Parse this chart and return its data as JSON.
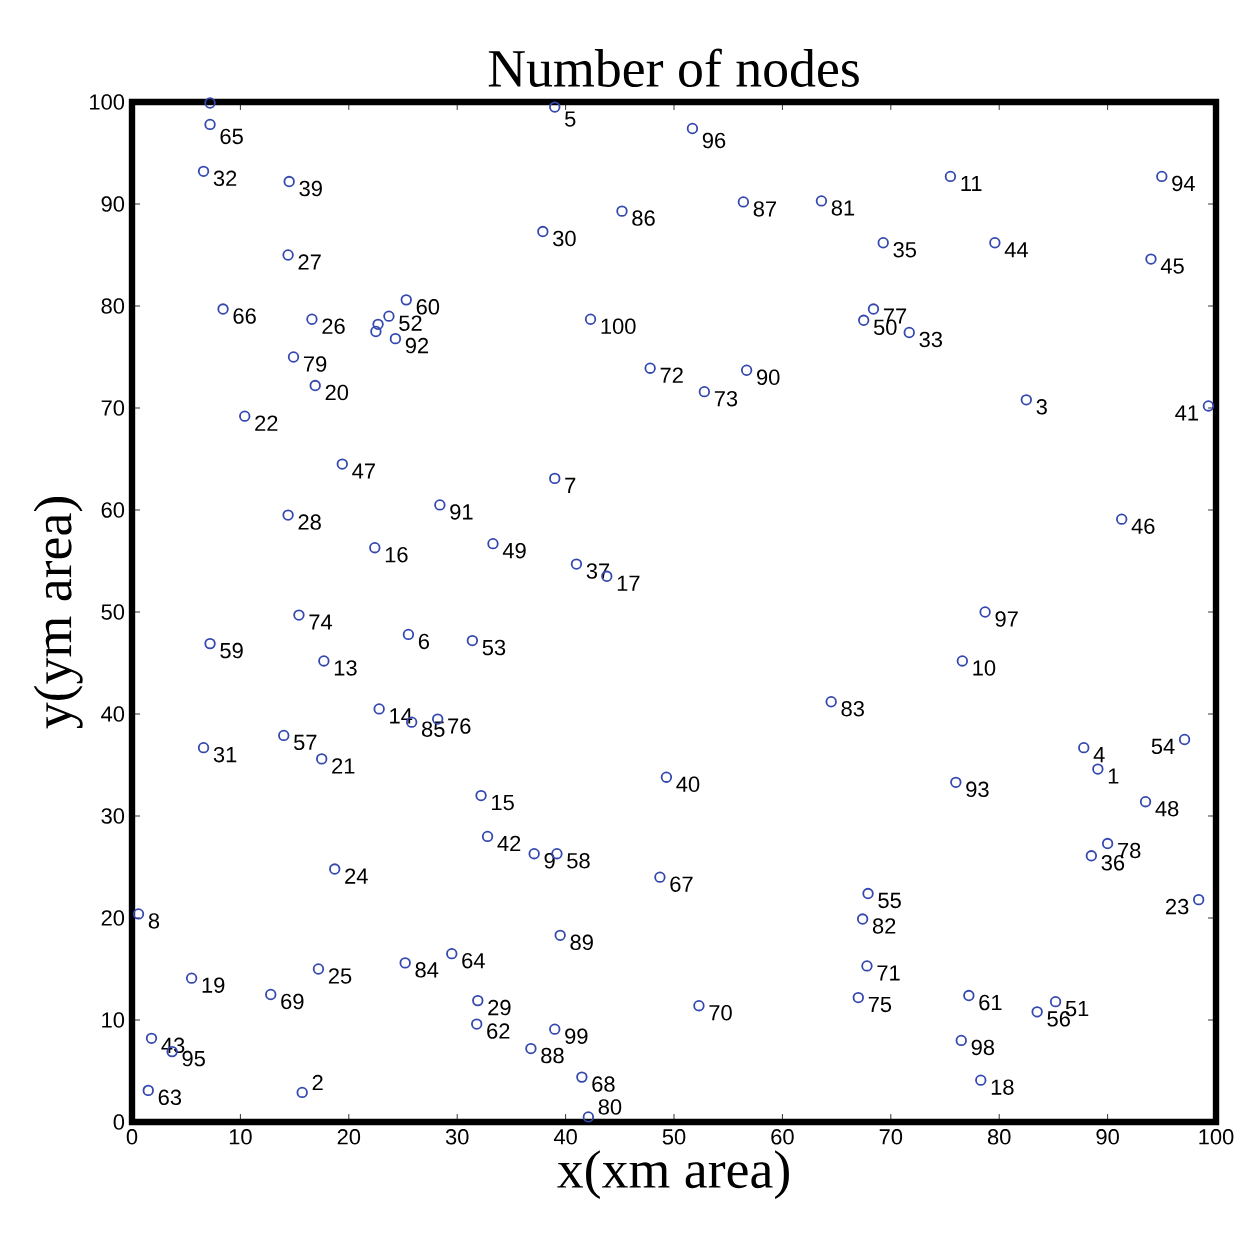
{
  "chart_data": {
    "type": "scatter",
    "title": "Number of nodes",
    "xlabel": "x(xm area)",
    "ylabel": "y(ym area)",
    "xlim": [
      0,
      100
    ],
    "ylim": [
      0,
      100
    ],
    "xticks": [
      0,
      10,
      20,
      30,
      40,
      50,
      60,
      70,
      80,
      90,
      100
    ],
    "yticks": [
      0,
      10,
      20,
      30,
      40,
      50,
      60,
      70,
      80,
      90,
      100
    ],
    "marker": "circle",
    "series": [
      {
        "color": "#3448b0",
        "x": [
          89.1,
          15.7,
          82.5,
          87.8,
          39.0,
          25.5,
          39.0,
          0.6,
          37.1,
          76.6,
          75.5,
          7.2,
          17.7,
          22.8,
          32.2,
          22.4,
          43.8,
          78.3,
          5.5,
          16.9,
          17.5,
          10.4,
          98.4,
          18.7,
          17.2,
          16.6,
          14.4,
          14.4,
          31.9,
          37.9,
          6.6,
          6.6,
          71.7,
          22.7,
          69.3,
          88.5,
          41.0,
          22.5,
          14.5,
          49.3,
          99.3,
          32.8,
          1.8,
          79.6,
          94.0,
          91.3,
          19.4,
          93.5,
          33.3,
          67.5,
          85.2,
          23.7,
          31.4,
          97.1,
          67.9,
          83.5,
          14.0,
          39.2,
          7.2,
          25.3,
          77.2,
          31.8,
          1.5,
          29.5,
          7.2,
          8.4,
          48.7,
          41.5,
          12.8,
          52.3,
          67.8,
          47.8,
          52.8,
          15.4,
          67.0,
          28.2,
          68.4,
          90.0,
          14.9,
          42.1,
          63.6,
          67.4,
          64.5,
          25.2,
          25.8,
          45.2,
          56.4,
          36.8,
          39.5,
          56.7,
          28.4,
          24.3,
          76.0,
          95.0,
          3.7,
          51.7,
          78.7,
          76.5,
          39.0,
          42.3
        ],
        "values": [
          34.6,
          2.9,
          70.8,
          36.7,
          99.5,
          47.8,
          63.1,
          20.4,
          26.3,
          45.2,
          92.7,
          99.9,
          45.2,
          40.5,
          32.0,
          56.3,
          53.5,
          4.1,
          14.1,
          72.2,
          35.6,
          69.2,
          21.8,
          24.8,
          15.0,
          78.7,
          85.0,
          59.5,
          11.9,
          87.3,
          36.7,
          93.2,
          77.4,
          78.2,
          86.2,
          26.1,
          54.7,
          77.5,
          92.2,
          33.8,
          70.2,
          28.0,
          8.2,
          86.2,
          84.6,
          59.1,
          64.5,
          31.4,
          56.7,
          78.6,
          11.8,
          79.0,
          47.2,
          37.5,
          22.4,
          10.8,
          37.9,
          26.3,
          46.9,
          80.6,
          12.4,
          9.6,
          3.1,
          16.5,
          97.8,
          79.7,
          24.0,
          4.4,
          12.5,
          11.4,
          15.3,
          73.9,
          71.6,
          49.7,
          12.2,
          39.5,
          79.7,
          27.3,
          75.0,
          0.5,
          90.3,
          19.9,
          41.2,
          15.6,
          39.2,
          89.3,
          90.2,
          7.2,
          18.3,
          73.7,
          60.5,
          76.8,
          33.3,
          92.7,
          6.9,
          97.4,
          50.0,
          8.0,
          9.1,
          78.7
        ]
      }
    ],
    "annotations": [
      {
        "text": "1",
        "x": 89.1,
        "y": 34.6
      },
      {
        "text": "2",
        "x": 15.7,
        "y": 2.9
      },
      {
        "text": "3",
        "x": 82.5,
        "y": 70.8
      },
      {
        "text": "4",
        "x": 87.8,
        "y": 36.7
      },
      {
        "text": "5",
        "x": 39.0,
        "y": 99.5
      },
      {
        "text": "6",
        "x": 25.5,
        "y": 47.8
      },
      {
        "text": "7",
        "x": 39.0,
        "y": 63.1
      },
      {
        "text": "8",
        "x": 0.6,
        "y": 20.4
      },
      {
        "text": "9",
        "x": 37.1,
        "y": 26.3
      },
      {
        "text": "10",
        "x": 76.6,
        "y": 45.2
      },
      {
        "text": "11",
        "x": 75.5,
        "y": 92.7
      },
      {
        "text": "13",
        "x": 17.7,
        "y": 45.2
      },
      {
        "text": "14",
        "x": 22.8,
        "y": 40.5
      },
      {
        "text": "15",
        "x": 32.2,
        "y": 32.0
      },
      {
        "text": "16",
        "x": 22.4,
        "y": 56.3
      },
      {
        "text": "17",
        "x": 43.8,
        "y": 53.5
      },
      {
        "text": "18",
        "x": 78.3,
        "y": 4.1
      },
      {
        "text": "19",
        "x": 5.5,
        "y": 14.1
      },
      {
        "text": "20",
        "x": 16.9,
        "y": 72.2
      },
      {
        "text": "21",
        "x": 17.5,
        "y": 35.6
      },
      {
        "text": "22",
        "x": 10.4,
        "y": 69.2
      },
      {
        "text": "23",
        "x": 98.4,
        "y": 21.8
      },
      {
        "text": "24",
        "x": 18.7,
        "y": 24.8
      },
      {
        "text": "25",
        "x": 17.2,
        "y": 15.0
      },
      {
        "text": "26",
        "x": 16.6,
        "y": 78.7
      },
      {
        "text": "27",
        "x": 14.4,
        "y": 85.0
      },
      {
        "text": "28",
        "x": 14.4,
        "y": 59.5
      },
      {
        "text": "29",
        "x": 31.9,
        "y": 11.9
      },
      {
        "text": "30",
        "x": 37.9,
        "y": 87.3
      },
      {
        "text": "31",
        "x": 6.6,
        "y": 36.7
      },
      {
        "text": "32",
        "x": 6.6,
        "y": 93.2
      },
      {
        "text": "33",
        "x": 71.7,
        "y": 77.4
      },
      {
        "text": "35",
        "x": 69.3,
        "y": 86.2
      },
      {
        "text": "36",
        "x": 88.5,
        "y": 26.1
      },
      {
        "text": "37",
        "x": 41.0,
        "y": 54.7
      },
      {
        "text": "39",
        "x": 14.5,
        "y": 92.2
      },
      {
        "text": "40",
        "x": 49.3,
        "y": 33.8
      },
      {
        "text": "41",
        "x": 99.3,
        "y": 70.2
      },
      {
        "text": "42",
        "x": 32.8,
        "y": 28.0
      },
      {
        "text": "43",
        "x": 1.8,
        "y": 8.2
      },
      {
        "text": "44",
        "x": 79.6,
        "y": 86.2
      },
      {
        "text": "45",
        "x": 94.0,
        "y": 84.6
      },
      {
        "text": "46",
        "x": 91.3,
        "y": 59.1
      },
      {
        "text": "47",
        "x": 19.4,
        "y": 64.5
      },
      {
        "text": "48",
        "x": 93.5,
        "y": 31.4
      },
      {
        "text": "49",
        "x": 33.3,
        "y": 56.7
      },
      {
        "text": "50",
        "x": 67.5,
        "y": 78.6
      },
      {
        "text": "51",
        "x": 85.2,
        "y": 11.8
      },
      {
        "text": "52",
        "x": 23.7,
        "y": 79.0
      },
      {
        "text": "53",
        "x": 31.4,
        "y": 47.2
      },
      {
        "text": "54",
        "x": 97.1,
        "y": 37.5
      },
      {
        "text": "55",
        "x": 67.9,
        "y": 22.4
      },
      {
        "text": "56",
        "x": 83.5,
        "y": 10.8
      },
      {
        "text": "57",
        "x": 14.0,
        "y": 37.9
      },
      {
        "text": "58",
        "x": 39.2,
        "y": 26.3
      },
      {
        "text": "59",
        "x": 7.2,
        "y": 46.9
      },
      {
        "text": "60",
        "x": 25.3,
        "y": 80.6
      },
      {
        "text": "61",
        "x": 77.2,
        "y": 12.4
      },
      {
        "text": "62",
        "x": 31.8,
        "y": 9.6
      },
      {
        "text": "63",
        "x": 1.5,
        "y": 3.1
      },
      {
        "text": "64",
        "x": 29.5,
        "y": 16.5
      },
      {
        "text": "65",
        "x": 7.2,
        "y": 97.8
      },
      {
        "text": "66",
        "x": 8.4,
        "y": 79.7
      },
      {
        "text": "67",
        "x": 48.7,
        "y": 24.0
      },
      {
        "text": "68",
        "x": 41.5,
        "y": 4.4
      },
      {
        "text": "69",
        "x": 12.8,
        "y": 12.5
      },
      {
        "text": "70",
        "x": 52.3,
        "y": 11.4
      },
      {
        "text": "71",
        "x": 67.8,
        "y": 15.3
      },
      {
        "text": "72",
        "x": 47.8,
        "y": 73.9
      },
      {
        "text": "73",
        "x": 52.8,
        "y": 71.6
      },
      {
        "text": "74",
        "x": 15.4,
        "y": 49.7
      },
      {
        "text": "75",
        "x": 67.0,
        "y": 12.2
      },
      {
        "text": "76",
        "x": 28.2,
        "y": 39.5
      },
      {
        "text": "77",
        "x": 68.4,
        "y": 79.7
      },
      {
        "text": "78",
        "x": 90.0,
        "y": 27.3
      },
      {
        "text": "79",
        "x": 14.9,
        "y": 75.0
      },
      {
        "text": "80",
        "x": 42.1,
        "y": 0.5
      },
      {
        "text": "81",
        "x": 63.6,
        "y": 90.3
      },
      {
        "text": "82",
        "x": 67.4,
        "y": 19.9
      },
      {
        "text": "83",
        "x": 64.5,
        "y": 41.2
      },
      {
        "text": "84",
        "x": 25.2,
        "y": 15.6
      },
      {
        "text": "85",
        "x": 25.8,
        "y": 39.2
      },
      {
        "text": "86",
        "x": 45.2,
        "y": 89.3
      },
      {
        "text": "87",
        "x": 56.4,
        "y": 90.2
      },
      {
        "text": "88",
        "x": 36.8,
        "y": 7.2
      },
      {
        "text": "89",
        "x": 39.5,
        "y": 18.3
      },
      {
        "text": "90",
        "x": 56.7,
        "y": 73.7
      },
      {
        "text": "91",
        "x": 28.4,
        "y": 60.5
      },
      {
        "text": "92",
        "x": 24.3,
        "y": 76.8
      },
      {
        "text": "93",
        "x": 76.0,
        "y": 33.3
      },
      {
        "text": "94",
        "x": 95.0,
        "y": 92.7
      },
      {
        "text": "95",
        "x": 3.7,
        "y": 6.9
      },
      {
        "text": "96",
        "x": 51.7,
        "y": 97.4
      },
      {
        "text": "97",
        "x": 78.7,
        "y": 50.0
      },
      {
        "text": "98",
        "x": 76.5,
        "y": 8.0
      },
      {
        "text": "99",
        "x": 39.0,
        "y": 9.1
      },
      {
        "text": "100",
        "x": 42.3,
        "y": 78.7
      }
    ]
  }
}
